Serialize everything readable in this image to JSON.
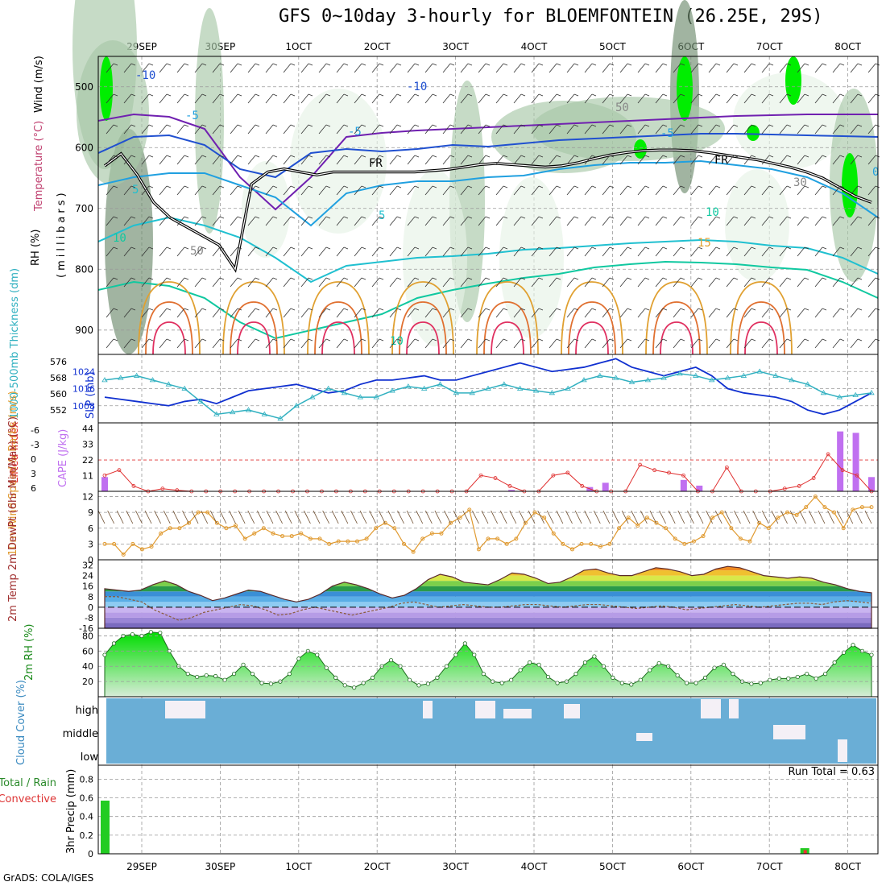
{
  "title": "GFS 0~10day 3-hourly for BLOEMFONTEIN (26.25E, 29S)",
  "footer": "GrADS: COLA/IGES",
  "run_total": "Run Total = 0.63",
  "colors": {
    "rh_light": "#e6f2e6",
    "rh_mid": "#a8c8a8",
    "rh_dark": "#6e8c6e",
    "rh_bright": "#00ee00",
    "slp": "#1030d0",
    "thickness": "#30b0c0",
    "cape": "#c070f0",
    "lifted": "#e03030",
    "wind_speed": "#e09a30",
    "cloud": "#6aaed6",
    "precip_total": "#22cc22",
    "precip_conv": "#ee3333"
  },
  "chart_data": [
    {
      "type": "line",
      "panel": "upper-air",
      "ylabel": "(millibars)",
      "side_labels": [
        "RH (%)",
        "Temperature (°C)",
        "Wind (m/s)"
      ],
      "x_ticks": [
        "29SEP",
        "30SEP",
        "1OCT",
        "2OCT",
        "3OCT",
        "4OCT",
        "5OCT",
        "6OCT",
        "7OCT",
        "8OCT"
      ],
      "y_ticks": [
        500,
        600,
        700,
        800,
        900
      ],
      "ylim": [
        450,
        940
      ],
      "contour_labels": [
        "-10",
        "-10",
        "-5",
        "-5",
        "-5",
        "5",
        "5",
        "10",
        "10",
        "15",
        "10",
        "FR",
        "FR",
        "50",
        "50",
        "30",
        "0"
      ],
      "freezing_level_mb": [
        630,
        610,
        645,
        690,
        715,
        730,
        745,
        760,
        800,
        660,
        640,
        635,
        640,
        645,
        640,
        640,
        640,
        640,
        640,
        640,
        638,
        636,
        632,
        628,
        626,
        628,
        630,
        632,
        630,
        625,
        618,
        612,
        608,
        605,
        604,
        604,
        605,
        608,
        612,
        616,
        620,
        626,
        632,
        640,
        650,
        665,
        680,
        690
      ]
    },
    {
      "type": "line",
      "panel": "slp-thickness",
      "y_ticks_slp": [
        1008,
        1016,
        1024
      ],
      "y_ticks_thickness": [
        552,
        560,
        568,
        576
      ],
      "ylabel_left": "1000-500mb Thickness (dm)",
      "ylabel_right": "SLP (mb)",
      "ylim_slp": [
        1000,
        1032
      ],
      "series": [
        {
          "values": [
            1012,
            1011,
            1010,
            1009,
            1008,
            1010,
            1011,
            1009,
            1012,
            1015,
            1016,
            1017,
            1018,
            1016,
            1014,
            1015,
            1018,
            1020,
            1020,
            1021,
            1022,
            1020,
            1020,
            1022,
            1024,
            1026,
            1028,
            1026,
            1024,
            1025,
            1026,
            1028,
            1030,
            1026,
            1024,
            1022,
            1024,
            1026,
            1022,
            1016,
            1014,
            1013,
            1012,
            1010,
            1006,
            1004,
            1006,
            1010,
            1014
          ]
        },
        {
          "values": [
            1020,
            1021,
            1022,
            1020,
            1018,
            1016,
            1010,
            1004,
            1005,
            1006,
            1004,
            1002,
            1008,
            1012,
            1016,
            1014,
            1012,
            1012,
            1015,
            1017,
            1016,
            1018,
            1014,
            1014,
            1016,
            1018,
            1016,
            1015,
            1014,
            1016,
            1020,
            1022,
            1021,
            1019,
            1020,
            1021,
            1023,
            1022,
            1020,
            1021,
            1022,
            1024,
            1022,
            1020,
            1018,
            1014,
            1012,
            1013,
            1014
          ]
        }
      ]
    },
    {
      "type": "bar",
      "panel": "cape-lifted-index",
      "y_ticks_cape": [
        11,
        22,
        33,
        44
      ],
      "y_ticks_li": [
        6,
        3,
        0,
        -3,
        -6
      ],
      "ylabel_left": "Lifted Index",
      "ylabel_right": "CAPE (J/kg)",
      "ylim_cape": [
        0,
        48
      ],
      "cape": [
        10,
        0,
        0,
        0,
        0,
        0,
        0,
        0,
        0,
        0,
        0,
        0,
        0,
        0,
        0,
        0,
        0,
        0,
        0,
        0,
        0,
        0,
        0,
        0,
        0,
        0,
        1,
        0,
        0,
        0,
        0,
        3,
        6,
        0,
        0,
        0,
        0,
        8,
        4,
        0,
        0,
        0,
        0,
        0,
        0,
        0,
        0,
        42,
        41,
        10
      ],
      "lifted_index": [
        3,
        2,
        5,
        6,
        5.5,
        5.8,
        6,
        6,
        6,
        6,
        6,
        6,
        6,
        6,
        6,
        6,
        6,
        6,
        6,
        6,
        6,
        6,
        6,
        6,
        6,
        6,
        3,
        3.5,
        5,
        6,
        6,
        3,
        2.5,
        5,
        6,
        6,
        6,
        1,
        2,
        2.5,
        3,
        6,
        6,
        1.5,
        6,
        6,
        6,
        5.5,
        5,
        3.5,
        -1,
        2,
        3,
        6
      ]
    },
    {
      "type": "line",
      "panel": "10m-wind",
      "y_ticks": [
        0,
        3,
        6,
        9,
        12
      ],
      "ylabel": "10m Wind Speed & Barbs (m/s)",
      "ylim": [
        0,
        13
      ],
      "values": [
        3,
        3,
        1,
        3,
        2,
        2.5,
        5,
        6,
        6,
        7,
        9,
        9,
        7,
        6,
        6.5,
        4,
        5,
        6,
        5,
        4.5,
        4.5,
        5,
        4,
        4,
        3,
        3.5,
        3.5,
        3.5,
        4,
        6,
        7,
        6,
        3,
        1.5,
        4,
        5,
        5,
        7,
        8,
        9.5,
        2,
        4,
        4,
        3,
        4,
        7,
        9,
        8,
        5,
        3,
        2,
        3,
        3,
        2.5,
        3,
        6,
        8,
        6.5,
        8,
        7,
        6,
        4,
        3,
        3.5,
        4.5,
        8,
        9,
        6,
        4,
        3.5,
        7,
        6,
        8,
        9,
        8.5,
        10,
        12,
        10,
        9,
        6,
        9.5,
        10,
        10
      ]
    },
    {
      "type": "area",
      "panel": "2m-temp",
      "y_ticks": [
        -16,
        -8,
        0,
        8,
        16,
        24,
        32
      ],
      "ylabel": "2m Temp 2m DewPt (6hr Min/Max) (°C)",
      "ylim": [
        -16,
        36
      ],
      "temp": [
        14,
        13,
        12,
        13,
        17,
        20,
        17,
        12,
        9,
        5,
        7,
        10,
        13,
        12,
        9,
        6,
        4,
        6,
        10,
        16,
        19,
        17,
        14,
        10,
        7,
        9,
        14,
        21,
        25,
        23,
        19,
        18,
        17,
        21,
        26,
        25,
        22,
        18,
        19,
        23,
        28,
        29,
        26,
        24,
        24,
        27,
        30,
        29,
        27,
        24,
        25,
        29,
        31,
        30,
        27,
        24,
        23,
        22,
        23,
        22,
        19,
        17,
        14,
        12,
        11
      ],
      "dewpoint": [
        8,
        8,
        6,
        4,
        -2,
        -6,
        -10,
        -8,
        -4,
        -2,
        0,
        2,
        1,
        -2,
        -6,
        -5,
        -2,
        0,
        -2,
        -4,
        -6,
        -4,
        -2,
        0,
        3,
        4,
        2,
        0,
        1,
        2,
        1,
        0,
        0,
        1,
        2,
        2,
        1,
        0,
        1,
        2,
        2,
        1,
        0,
        -1,
        0,
        1,
        0,
        -2,
        -1,
        0,
        1,
        2,
        1,
        0,
        1,
        2,
        3,
        3,
        2,
        4,
        5,
        4,
        3
      ]
    },
    {
      "type": "area",
      "panel": "2m-rh",
      "y_ticks": [
        20,
        40,
        60,
        80
      ],
      "ylabel": "2m RH (%)",
      "ylim": [
        0,
        90
      ],
      "values": [
        55,
        70,
        80,
        82,
        80,
        85,
        84,
        60,
        40,
        30,
        26,
        28,
        27,
        22,
        30,
        42,
        30,
        18,
        17,
        20,
        30,
        50,
        60,
        55,
        38,
        25,
        15,
        12,
        18,
        25,
        40,
        48,
        40,
        22,
        15,
        17,
        25,
        40,
        55,
        70,
        55,
        30,
        20,
        18,
        22,
        35,
        45,
        42,
        26,
        18,
        20,
        30,
        45,
        53,
        40,
        25,
        18,
        16,
        22,
        35,
        44,
        40,
        28,
        18,
        18,
        25,
        38,
        42,
        30,
        20,
        17,
        18,
        22,
        24,
        24,
        26,
        30,
        24,
        30,
        45,
        58,
        68,
        60,
        55
      ]
    },
    {
      "type": "heatmap",
      "panel": "cloud-cover",
      "ylabel": "Cloud Cover (%)",
      "levels": [
        "high",
        "middle",
        "low"
      ]
    },
    {
      "type": "bar",
      "panel": "3hr-precip",
      "y_ticks": [
        0,
        0.2,
        0.4,
        0.6,
        0.8
      ],
      "ylabel": "3hr Precip (mm)",
      "legend": [
        "Total / Rain",
        "Convective"
      ],
      "ylim": [
        0,
        0.95
      ],
      "total": [
        0.57,
        0,
        0,
        0,
        0,
        0,
        0,
        0,
        0,
        0,
        0,
        0,
        0,
        0,
        0,
        0,
        0,
        0,
        0,
        0,
        0,
        0,
        0,
        0,
        0,
        0,
        0,
        0,
        0,
        0,
        0,
        0,
        0,
        0,
        0,
        0,
        0,
        0,
        0,
        0,
        0,
        0,
        0,
        0,
        0,
        0,
        0,
        0,
        0,
        0,
        0,
        0,
        0,
        0,
        0,
        0,
        0,
        0,
        0,
        0,
        0,
        0,
        0,
        0,
        0,
        0,
        0,
        0,
        0,
        0,
        0,
        0,
        0,
        0.06,
        0,
        0,
        0,
        0,
        0,
        0,
        0
      ],
      "convective": [
        0,
        0,
        0,
        0,
        0,
        0,
        0,
        0,
        0,
        0,
        0,
        0,
        0,
        0,
        0,
        0,
        0,
        0,
        0,
        0,
        0,
        0,
        0,
        0,
        0,
        0,
        0,
        0,
        0,
        0,
        0,
        0,
        0,
        0,
        0,
        0,
        0,
        0,
        0,
        0,
        0,
        0,
        0,
        0,
        0,
        0,
        0,
        0,
        0,
        0,
        0,
        0,
        0,
        0,
        0,
        0,
        0,
        0,
        0,
        0,
        0,
        0,
        0,
        0,
        0,
        0,
        0,
        0,
        0,
        0,
        0,
        0,
        0,
        0.04,
        0,
        0,
        0,
        0,
        0,
        0,
        0
      ]
    }
  ]
}
